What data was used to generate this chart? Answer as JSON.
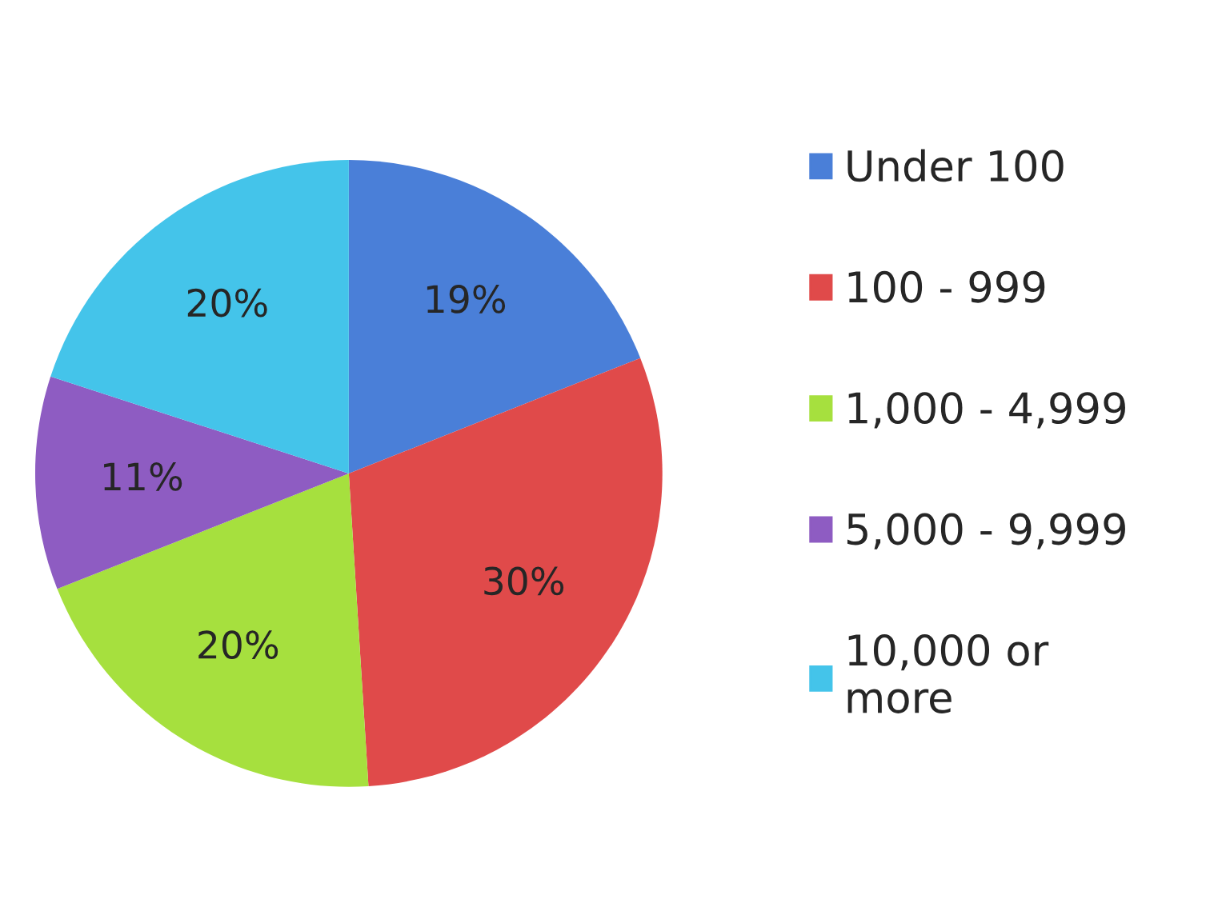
{
  "chart_data": {
    "type": "pie",
    "categories": [
      "Under 100",
      "100 - 999",
      "1,000 - 4,999",
      "5,000 - 9,999",
      "10,000 or\nmore"
    ],
    "values": [
      19,
      30,
      20,
      11,
      20
    ],
    "colors": [
      "#4a7fd8",
      "#e04a4a",
      "#a6e03e",
      "#8e5cc2",
      "#44c4ea"
    ],
    "value_labels": [
      "19%",
      "30%",
      "20%",
      "11%",
      "20%"
    ],
    "legend": "right"
  }
}
